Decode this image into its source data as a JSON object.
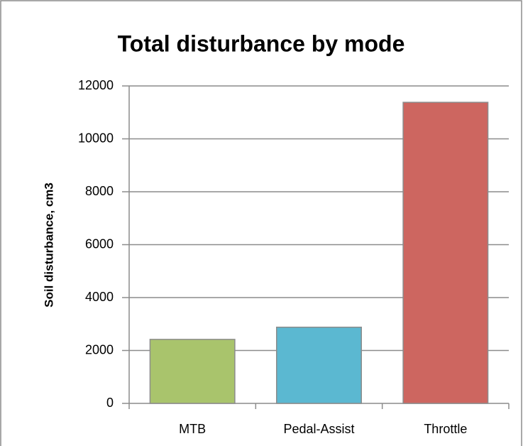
{
  "chart_data": {
    "type": "bar",
    "title": "Total disturbance by mode",
    "ylabel": "Soil disturbance, cm3",
    "categories": [
      "MTB",
      "Pedal-Assist",
      "Throttle"
    ],
    "values": [
      2420,
      2880,
      11380
    ],
    "colors": [
      "#a9c46c",
      "#5bb8d1",
      "#cd6660"
    ],
    "ylim": [
      0,
      12000
    ],
    "yticks": [
      0,
      2000,
      4000,
      6000,
      8000,
      10000,
      12000
    ],
    "grid": true
  }
}
